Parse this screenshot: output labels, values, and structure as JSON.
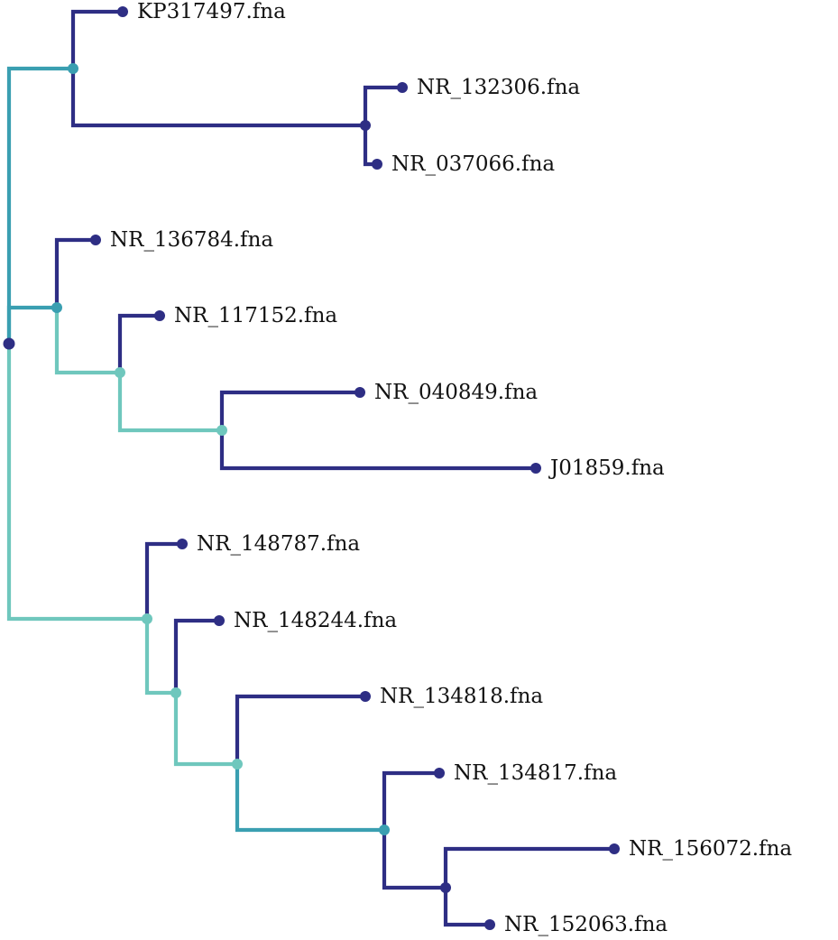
{
  "colors": {
    "dark": "#2e2e84",
    "mid": "#3a9fb1",
    "light": "#6fc7bd",
    "text": "#111111"
  },
  "tree": {
    "nodes": [
      {
        "id": "root",
        "parent": null,
        "kind": "internal",
        "color": "dark"
      },
      {
        "id": "n1",
        "parent": "root",
        "kind": "internal",
        "color": "mid",
        "edge_color": "mid"
      },
      {
        "id": "leaf-kp317497",
        "parent": "n1",
        "kind": "leaf",
        "label": "KP317497.fna",
        "edge_color": "dark"
      },
      {
        "id": "n2",
        "parent": "n1",
        "kind": "internal",
        "color": "dark",
        "edge_color": "dark"
      },
      {
        "id": "leaf-nr132306",
        "parent": "n2",
        "kind": "leaf",
        "label": "NR_132306.fna",
        "edge_color": "dark"
      },
      {
        "id": "leaf-nr037066",
        "parent": "n2",
        "kind": "leaf",
        "label": "NR_037066.fna",
        "edge_color": "dark"
      },
      {
        "id": "n3",
        "parent": "root",
        "kind": "internal",
        "color": "mid",
        "edge_color": "mid"
      },
      {
        "id": "leaf-nr136784",
        "parent": "n3",
        "kind": "leaf",
        "label": "NR_136784.fna",
        "edge_color": "dark"
      },
      {
        "id": "n4",
        "parent": "n3",
        "kind": "internal",
        "color": "light",
        "edge_color": "light"
      },
      {
        "id": "leaf-nr117152",
        "parent": "n4",
        "kind": "leaf",
        "label": "NR_117152.fna",
        "edge_color": "dark"
      },
      {
        "id": "n5",
        "parent": "n4",
        "kind": "internal",
        "color": "light",
        "edge_color": "light"
      },
      {
        "id": "leaf-nr040849",
        "parent": "n5",
        "kind": "leaf",
        "label": "NR_040849.fna",
        "edge_color": "dark"
      },
      {
        "id": "leaf-j01859",
        "parent": "n5",
        "kind": "leaf",
        "label": "J01859.fna",
        "edge_color": "dark"
      },
      {
        "id": "n6",
        "parent": "root",
        "kind": "internal",
        "color": "light",
        "edge_color": "light"
      },
      {
        "id": "leaf-nr148787",
        "parent": "n6",
        "kind": "leaf",
        "label": "NR_148787.fna",
        "edge_color": "dark"
      },
      {
        "id": "n7",
        "parent": "n6",
        "kind": "internal",
        "color": "light",
        "edge_color": "light"
      },
      {
        "id": "leaf-nr148244",
        "parent": "n7",
        "kind": "leaf",
        "label": "NR_148244.fna",
        "edge_color": "dark"
      },
      {
        "id": "n8",
        "parent": "n7",
        "kind": "internal",
        "color": "light",
        "edge_color": "light"
      },
      {
        "id": "leaf-nr134818",
        "parent": "n8",
        "kind": "leaf",
        "label": "NR_134818.fna",
        "edge_color": "dark"
      },
      {
        "id": "n9",
        "parent": "n8",
        "kind": "internal",
        "color": "mid",
        "edge_color": "mid"
      },
      {
        "id": "leaf-nr134817",
        "parent": "n9",
        "kind": "leaf",
        "label": "NR_134817.fna",
        "edge_color": "dark"
      },
      {
        "id": "n10",
        "parent": "n9",
        "kind": "internal",
        "color": "dark",
        "edge_color": "dark"
      },
      {
        "id": "leaf-nr156072",
        "parent": "n10",
        "kind": "leaf",
        "label": "NR_156072.fna",
        "edge_color": "dark"
      },
      {
        "id": "leaf-nr152063",
        "parent": "n10",
        "kind": "leaf",
        "label": "NR_152063.fna",
        "edge_color": "dark"
      }
    ]
  }
}
